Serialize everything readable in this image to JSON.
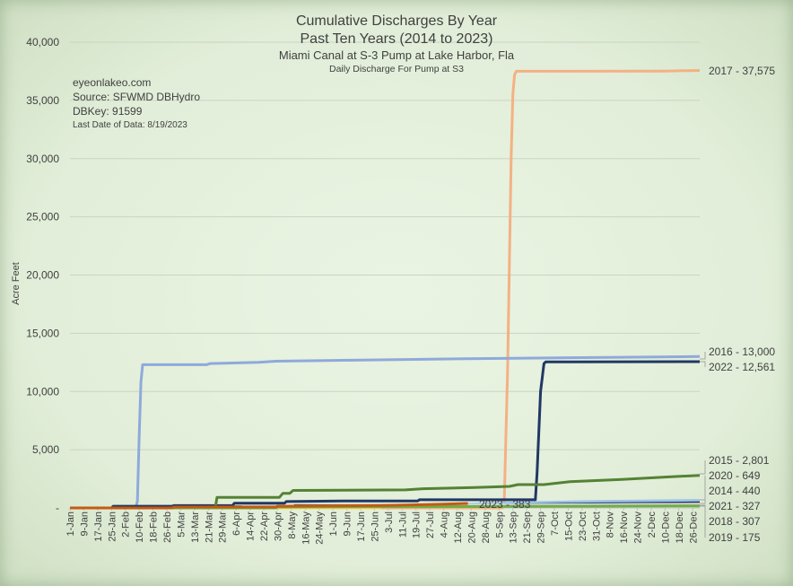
{
  "chart_data": {
    "type": "line",
    "title": "Cumulative Discharges By Year",
    "subtitle": "Past Ten Years (2014 to 2023)",
    "subtitle2": "Miami Canal at S-3 Pump at Lake Harbor, Fla",
    "subtitle3": "Daily Discharge For Pump at S3",
    "source_lines": [
      "eyeonlakeo.com",
      "Source: SFWMD DBHydro",
      "DBKey: 91599",
      "Last Date of Data: 8/19/2023"
    ],
    "xlabel": "",
    "ylabel": "Acre Feet",
    "ylim": [
      0,
      40000
    ],
    "yticks": [
      0,
      5000,
      10000,
      15000,
      20000,
      25000,
      30000,
      35000,
      40000
    ],
    "ytick_labels": [
      "-",
      "5,000",
      "10,000",
      "15,000",
      "20,000",
      "25,000",
      "30,000",
      "35,000",
      "40,000"
    ],
    "xlim": [
      1,
      365
    ],
    "xtick_labels": [
      "1-Jan",
      "9-Jan",
      "17-Jan",
      "25-Jan",
      "2-Feb",
      "10-Feb",
      "18-Feb",
      "26-Feb",
      "5-Mar",
      "13-Mar",
      "21-Mar",
      "29-Mar",
      "6-Apr",
      "14-Apr",
      "22-Apr",
      "30-Apr",
      "8-May",
      "16-May",
      "24-May",
      "1-Jun",
      "9-Jun",
      "17-Jun",
      "25-Jun",
      "3-Jul",
      "11-Jul",
      "19-Jul",
      "27-Jul",
      "4-Aug",
      "12-Aug",
      "20-Aug",
      "28-Aug",
      "5-Sep",
      "13-Sep",
      "21-Sep",
      "29-Sep",
      "7-Oct",
      "15-Oct",
      "23-Oct",
      "31-Oct",
      "8-Nov",
      "16-Nov",
      "24-Nov",
      "2-Dec",
      "10-Dec",
      "18-Dec",
      "26-Dec"
    ],
    "grid": true,
    "series": [
      {
        "name": "2017 - 37,575",
        "color": "#f4b183",
        "points": [
          [
            1,
            0
          ],
          [
            251,
            0
          ],
          [
            252,
            500
          ],
          [
            254,
            12000
          ],
          [
            256,
            30000
          ],
          [
            257,
            35500
          ],
          [
            258,
            37200
          ],
          [
            259,
            37500
          ],
          [
            290,
            37500
          ],
          [
            345,
            37520
          ],
          [
            365,
            37575
          ]
        ]
      },
      {
        "name": "2016 - 13,000",
        "color": "#8eaadb",
        "points": [
          [
            1,
            0
          ],
          [
            39,
            0
          ],
          [
            40,
            600
          ],
          [
            41,
            6000
          ],
          [
            42,
            10800
          ],
          [
            43,
            12300
          ],
          [
            80,
            12300
          ],
          [
            82,
            12400
          ],
          [
            110,
            12500
          ],
          [
            120,
            12600
          ],
          [
            170,
            12700
          ],
          [
            230,
            12820
          ],
          [
            290,
            12900
          ],
          [
            365,
            13000
          ]
        ]
      },
      {
        "name": "2022 - 12,561",
        "color": "#203864",
        "points": [
          [
            1,
            0
          ],
          [
            25,
            0
          ],
          [
            26,
            150
          ],
          [
            60,
            150
          ],
          [
            61,
            200
          ],
          [
            95,
            200
          ],
          [
            96,
            400
          ],
          [
            125,
            400
          ],
          [
            126,
            550
          ],
          [
            160,
            600
          ],
          [
            202,
            600
          ],
          [
            203,
            700
          ],
          [
            270,
            700
          ],
          [
            271,
            3000
          ],
          [
            273,
            10000
          ],
          [
            275,
            12400
          ],
          [
            276,
            12540
          ],
          [
            365,
            12561
          ]
        ]
      },
      {
        "name": "2015 - 2,801",
        "color": "#548235",
        "points": [
          [
            1,
            0
          ],
          [
            85,
            0
          ],
          [
            86,
            900
          ],
          [
            122,
            900
          ],
          [
            124,
            1250
          ],
          [
            128,
            1250
          ],
          [
            130,
            1500
          ],
          [
            195,
            1550
          ],
          [
            205,
            1650
          ],
          [
            235,
            1750
          ],
          [
            255,
            1850
          ],
          [
            260,
            2000
          ],
          [
            275,
            2000
          ],
          [
            290,
            2250
          ],
          [
            320,
            2450
          ],
          [
            345,
            2650
          ],
          [
            365,
            2801
          ]
        ]
      },
      {
        "name": "2020 - 649",
        "color": "#9dc3e6",
        "points": [
          [
            1,
            0
          ],
          [
            150,
            0
          ],
          [
            210,
            200
          ],
          [
            250,
            400
          ],
          [
            300,
            550
          ],
          [
            365,
            649
          ]
        ]
      },
      {
        "name": "2014 - 440",
        "color": "#1f3864",
        "points": [
          [
            1,
            0
          ],
          [
            60,
            0
          ],
          [
            61,
            100
          ],
          [
            130,
            100
          ],
          [
            131,
            200
          ],
          [
            240,
            200
          ],
          [
            300,
            350
          ],
          [
            365,
            440
          ]
        ]
      },
      {
        "name": "2021 - 327",
        "color": "#ffd966",
        "points": [
          [
            1,
            0
          ],
          [
            180,
            0
          ],
          [
            181,
            100
          ],
          [
            260,
            150
          ],
          [
            320,
            280
          ],
          [
            365,
            327
          ]
        ]
      },
      {
        "name": "2018 - 307",
        "color": "#d9d9d9",
        "points": [
          [
            1,
            0
          ],
          [
            100,
            0
          ],
          [
            101,
            150
          ],
          [
            200,
            200
          ],
          [
            300,
            280
          ],
          [
            365,
            307
          ]
        ]
      },
      {
        "name": "2019 - 175",
        "color": "#70ad47",
        "points": [
          [
            1,
            0
          ],
          [
            120,
            0
          ],
          [
            121,
            80
          ],
          [
            250,
            120
          ],
          [
            365,
            175
          ]
        ]
      },
      {
        "name": "2023 - 383",
        "color": "#c55a11",
        "points": [
          [
            1,
            0
          ],
          [
            60,
            0
          ],
          [
            61,
            80
          ],
          [
            120,
            80
          ],
          [
            121,
            150
          ],
          [
            180,
            200
          ],
          [
            210,
            300
          ],
          [
            231,
            383
          ]
        ]
      }
    ],
    "labels": [
      {
        "text": "2017 - 37,575",
        "series": 0
      },
      {
        "text": "2016 - 13,000",
        "series": 1
      },
      {
        "text": "2022 - 12,561",
        "series": 2
      },
      {
        "text": "2015 - 2,801",
        "series": 3
      },
      {
        "text": "2020 - 649",
        "series": 4
      },
      {
        "text": "2014 - 440",
        "series": 5
      },
      {
        "text": "2021 - 327",
        "series": 6
      },
      {
        "text": "2018 - 307",
        "series": 7
      },
      {
        "text": "2019 - 175",
        "series": 8
      },
      {
        "text": "2023 - 383",
        "series": 9
      }
    ]
  }
}
